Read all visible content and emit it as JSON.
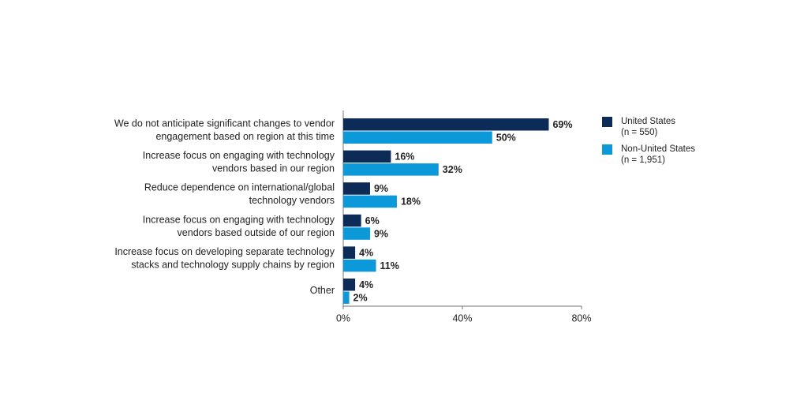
{
  "chart_data": {
    "type": "hbar",
    "categories": [
      [
        "We do not anticipate significant changes to vendor",
        "engagement based on region at this time"
      ],
      [
        "Increase focus on engaging with technology",
        "vendors based in our region"
      ],
      [
        "Reduce dependence on international/global",
        "technology vendors"
      ],
      [
        "Increase focus on engaging with technology",
        "vendors based outside of our region"
      ],
      [
        "Increase focus on developing separate technology",
        "stacks and technology supply chains by region"
      ],
      [
        "Other"
      ]
    ],
    "series": [
      {
        "name": "United States",
        "sample": "(n = 550)",
        "color": "#0c2b57",
        "values": [
          69,
          16,
          9,
          6,
          4,
          4
        ],
        "value_labels": [
          "69%",
          "16%",
          "9%",
          "6%",
          "4%",
          "4%"
        ]
      },
      {
        "name": "Non-United States",
        "sample": "(n = 1,951)",
        "color": "#0b99d9",
        "values": [
          50,
          32,
          18,
          9,
          11,
          2
        ],
        "value_labels": [
          "50%",
          "32%",
          "18%",
          "9%",
          "11%",
          "2%"
        ]
      }
    ],
    "xlim": [
      0,
      80
    ],
    "xticks": [
      {
        "value": 0,
        "label": "0%"
      },
      {
        "value": 40,
        "label": "40%"
      },
      {
        "value": 80,
        "label": "80%"
      }
    ],
    "legend": "right"
  }
}
